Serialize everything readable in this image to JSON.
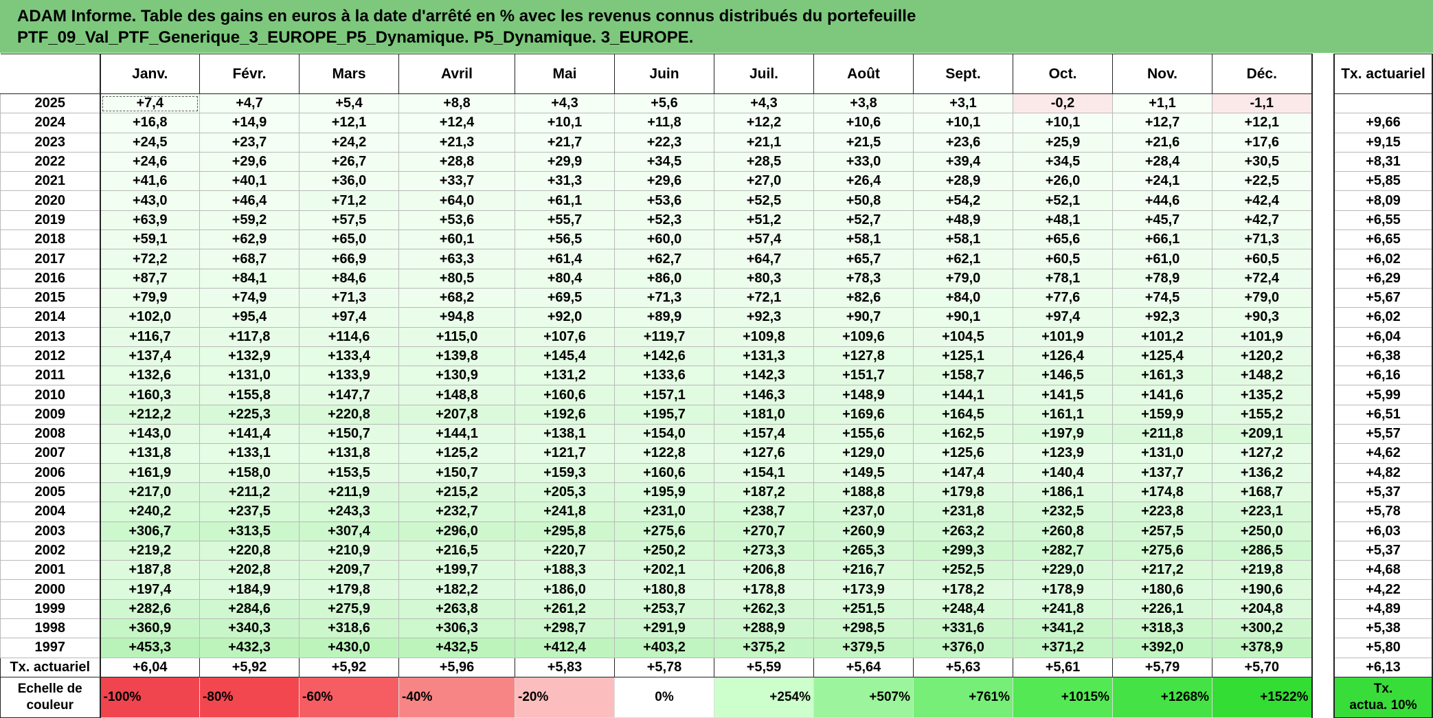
{
  "title": {
    "line1": "ADAM Informe. Table des gains en euros à la date d'arrêté en % avec les revenus connus distribués du portefeuille",
    "line2": "PTF_09_Val_PTF_Generique_3_EUROPE_P5_Dynamique. P5_Dynamique. 3_EUROPE."
  },
  "months": [
    "Janv.",
    "Févr.",
    "Mars",
    "Avril",
    "Mai",
    "Juin",
    "Juil.",
    "Août",
    "Sept.",
    "Oct.",
    "Nov.",
    "Déc."
  ],
  "side_header": "Tx. actuariel",
  "rows": [
    {
      "year": "2025",
      "values": [
        "+7,4",
        "+4,7",
        "+5,4",
        "+8,8",
        "+4,3",
        "+5,6",
        "+4,3",
        "+3,8",
        "+3,1",
        "-0,2",
        "+1,1",
        "-1,1"
      ],
      "tx": ""
    },
    {
      "year": "2024",
      "values": [
        "+16,8",
        "+14,9",
        "+12,1",
        "+12,4",
        "+10,1",
        "+11,8",
        "+12,2",
        "+10,6",
        "+10,1",
        "+10,1",
        "+12,7",
        "+12,1"
      ],
      "tx": "+9,66"
    },
    {
      "year": "2023",
      "values": [
        "+24,5",
        "+23,7",
        "+24,2",
        "+21,3",
        "+21,7",
        "+22,3",
        "+21,1",
        "+21,5",
        "+23,6",
        "+25,9",
        "+21,6",
        "+17,6"
      ],
      "tx": "+9,15"
    },
    {
      "year": "2022",
      "values": [
        "+24,6",
        "+29,6",
        "+26,7",
        "+28,8",
        "+29,9",
        "+34,5",
        "+28,5",
        "+33,0",
        "+39,4",
        "+34,5",
        "+28,4",
        "+30,5"
      ],
      "tx": "+8,31"
    },
    {
      "year": "2021",
      "values": [
        "+41,6",
        "+40,1",
        "+36,0",
        "+33,7",
        "+31,3",
        "+29,6",
        "+27,0",
        "+26,4",
        "+28,9",
        "+26,0",
        "+24,1",
        "+22,5"
      ],
      "tx": "+5,85"
    },
    {
      "year": "2020",
      "values": [
        "+43,0",
        "+46,4",
        "+71,2",
        "+64,0",
        "+61,1",
        "+53,6",
        "+52,5",
        "+50,8",
        "+54,2",
        "+52,1",
        "+44,6",
        "+42,4"
      ],
      "tx": "+8,09"
    },
    {
      "year": "2019",
      "values": [
        "+63,9",
        "+59,2",
        "+57,5",
        "+53,6",
        "+55,7",
        "+52,3",
        "+51,2",
        "+52,7",
        "+48,9",
        "+48,1",
        "+45,7",
        "+42,7"
      ],
      "tx": "+6,55"
    },
    {
      "year": "2018",
      "values": [
        "+59,1",
        "+62,9",
        "+65,0",
        "+60,1",
        "+56,5",
        "+60,0",
        "+57,4",
        "+58,1",
        "+58,1",
        "+65,6",
        "+66,1",
        "+71,3"
      ],
      "tx": "+6,65"
    },
    {
      "year": "2017",
      "values": [
        "+72,2",
        "+68,7",
        "+66,9",
        "+63,3",
        "+61,4",
        "+62,7",
        "+64,7",
        "+65,7",
        "+62,1",
        "+60,5",
        "+61,0",
        "+60,5"
      ],
      "tx": "+6,02"
    },
    {
      "year": "2016",
      "values": [
        "+87,7",
        "+84,1",
        "+84,6",
        "+80,5",
        "+80,4",
        "+86,0",
        "+80,3",
        "+78,3",
        "+79,0",
        "+78,1",
        "+78,9",
        "+72,4"
      ],
      "tx": "+6,29"
    },
    {
      "year": "2015",
      "values": [
        "+79,9",
        "+74,9",
        "+71,3",
        "+68,2",
        "+69,5",
        "+71,3",
        "+72,1",
        "+82,6",
        "+84,0",
        "+77,6",
        "+74,5",
        "+79,0"
      ],
      "tx": "+5,67"
    },
    {
      "year": "2014",
      "values": [
        "+102,0",
        "+95,4",
        "+97,4",
        "+94,8",
        "+92,0",
        "+89,9",
        "+92,3",
        "+90,7",
        "+90,1",
        "+97,4",
        "+92,3",
        "+90,3"
      ],
      "tx": "+6,02"
    },
    {
      "year": "2013",
      "values": [
        "+116,7",
        "+117,8",
        "+114,6",
        "+115,0",
        "+107,6",
        "+119,7",
        "+109,8",
        "+109,6",
        "+104,5",
        "+101,9",
        "+101,2",
        "+101,9"
      ],
      "tx": "+6,04"
    },
    {
      "year": "2012",
      "values": [
        "+137,4",
        "+132,9",
        "+133,4",
        "+139,8",
        "+145,4",
        "+142,6",
        "+131,3",
        "+127,8",
        "+125,1",
        "+126,4",
        "+125,4",
        "+120,2"
      ],
      "tx": "+6,38"
    },
    {
      "year": "2011",
      "values": [
        "+132,6",
        "+131,0",
        "+133,9",
        "+130,9",
        "+131,2",
        "+133,6",
        "+142,3",
        "+151,7",
        "+158,7",
        "+146,5",
        "+161,3",
        "+148,2"
      ],
      "tx": "+6,16"
    },
    {
      "year": "2010",
      "values": [
        "+160,3",
        "+155,8",
        "+147,7",
        "+148,8",
        "+160,6",
        "+157,1",
        "+146,3",
        "+148,9",
        "+144,1",
        "+141,5",
        "+141,6",
        "+135,2"
      ],
      "tx": "+5,99"
    },
    {
      "year": "2009",
      "values": [
        "+212,2",
        "+225,3",
        "+220,8",
        "+207,8",
        "+192,6",
        "+195,7",
        "+181,0",
        "+169,6",
        "+164,5",
        "+161,1",
        "+159,9",
        "+155,2"
      ],
      "tx": "+6,51"
    },
    {
      "year": "2008",
      "values": [
        "+143,0",
        "+141,4",
        "+150,7",
        "+144,1",
        "+138,1",
        "+154,0",
        "+157,4",
        "+155,6",
        "+162,5",
        "+197,9",
        "+211,8",
        "+209,1"
      ],
      "tx": "+5,57"
    },
    {
      "year": "2007",
      "values": [
        "+131,8",
        "+133,1",
        "+131,8",
        "+125,2",
        "+121,7",
        "+122,8",
        "+127,6",
        "+129,0",
        "+125,6",
        "+123,9",
        "+131,0",
        "+127,2"
      ],
      "tx": "+4,62"
    },
    {
      "year": "2006",
      "values": [
        "+161,9",
        "+158,0",
        "+153,5",
        "+150,7",
        "+159,3",
        "+160,6",
        "+154,1",
        "+149,5",
        "+147,4",
        "+140,4",
        "+137,7",
        "+136,2"
      ],
      "tx": "+4,82"
    },
    {
      "year": "2005",
      "values": [
        "+217,0",
        "+211,2",
        "+211,9",
        "+215,2",
        "+205,3",
        "+195,9",
        "+187,2",
        "+188,8",
        "+179,8",
        "+186,1",
        "+174,8",
        "+168,7"
      ],
      "tx": "+5,37"
    },
    {
      "year": "2004",
      "values": [
        "+240,2",
        "+237,5",
        "+243,3",
        "+232,7",
        "+241,8",
        "+231,0",
        "+238,7",
        "+237,0",
        "+231,8",
        "+232,5",
        "+223,8",
        "+223,1"
      ],
      "tx": "+5,78"
    },
    {
      "year": "2003",
      "values": [
        "+306,7",
        "+313,5",
        "+307,4",
        "+296,0",
        "+295,8",
        "+275,6",
        "+270,7",
        "+260,9",
        "+263,2",
        "+260,8",
        "+257,5",
        "+250,0"
      ],
      "tx": "+6,03"
    },
    {
      "year": "2002",
      "values": [
        "+219,2",
        "+220,8",
        "+210,9",
        "+216,5",
        "+220,7",
        "+250,2",
        "+273,3",
        "+265,3",
        "+299,3",
        "+282,7",
        "+275,6",
        "+286,5"
      ],
      "tx": "+5,37"
    },
    {
      "year": "2001",
      "values": [
        "+187,8",
        "+202,8",
        "+209,7",
        "+199,7",
        "+188,3",
        "+202,1",
        "+206,8",
        "+216,7",
        "+252,5",
        "+229,0",
        "+217,2",
        "+219,8"
      ],
      "tx": "+4,68"
    },
    {
      "year": "2000",
      "values": [
        "+197,4",
        "+184,9",
        "+179,8",
        "+182,2",
        "+186,0",
        "+180,8",
        "+178,8",
        "+173,9",
        "+178,2",
        "+178,9",
        "+180,6",
        "+190,6"
      ],
      "tx": "+4,22"
    },
    {
      "year": "1999",
      "values": [
        "+282,6",
        "+284,6",
        "+275,9",
        "+263,8",
        "+261,2",
        "+253,7",
        "+262,3",
        "+251,5",
        "+248,4",
        "+241,8",
        "+226,1",
        "+204,8"
      ],
      "tx": "+4,89"
    },
    {
      "year": "1998",
      "values": [
        "+360,9",
        "+340,3",
        "+318,6",
        "+306,3",
        "+298,7",
        "+291,9",
        "+288,9",
        "+298,5",
        "+331,6",
        "+341,2",
        "+318,3",
        "+300,2"
      ],
      "tx": "+5,38"
    },
    {
      "year": "1997",
      "values": [
        "+453,3",
        "+432,3",
        "+430,0",
        "+432,5",
        "+412,4",
        "+403,2",
        "+375,2",
        "+379,5",
        "+376,0",
        "+371,2",
        "+392,0",
        "+378,9"
      ],
      "tx": "+5,80"
    }
  ],
  "footer": {
    "label": "Tx. actuariel",
    "values": [
      "+6,04",
      "+5,92",
      "+5,92",
      "+5,96",
      "+5,83",
      "+5,78",
      "+5,59",
      "+5,64",
      "+5,63",
      "+5,61",
      "+5,79",
      "+5,70"
    ],
    "total": "+6,13"
  },
  "scale": {
    "label_line1": "Echelle de",
    "label_line2": "couleur",
    "items": [
      {
        "text": "-100%",
        "color": "#f0444f"
      },
      {
        "text": "-80%",
        "color": "#f3474f"
      },
      {
        "text": "-60%",
        "color": "#f55d63"
      },
      {
        "text": "-40%",
        "color": "#f88585"
      },
      {
        "text": "-20%",
        "color": "#fbbdbd"
      },
      {
        "text": "0%",
        "color": "#ffffff"
      },
      {
        "text": "+254%",
        "color": "#ccffcc"
      },
      {
        "text": "+507%",
        "color": "#9cf59c"
      },
      {
        "text": "+761%",
        "color": "#77ee77"
      },
      {
        "text": "+1015%",
        "color": "#55e855"
      },
      {
        "text": "+1268%",
        "color": "#44e244"
      },
      {
        "text": "+1522%",
        "color": "#33dd33"
      }
    ],
    "side_line1": "Tx.",
    "side_line2": "actua. 10%",
    "side_color": "#39dd39"
  },
  "colors": {
    "title_bg": "#7dc87d",
    "positive_max": "#b8f3b8",
    "negative": "#fbe9e9"
  }
}
